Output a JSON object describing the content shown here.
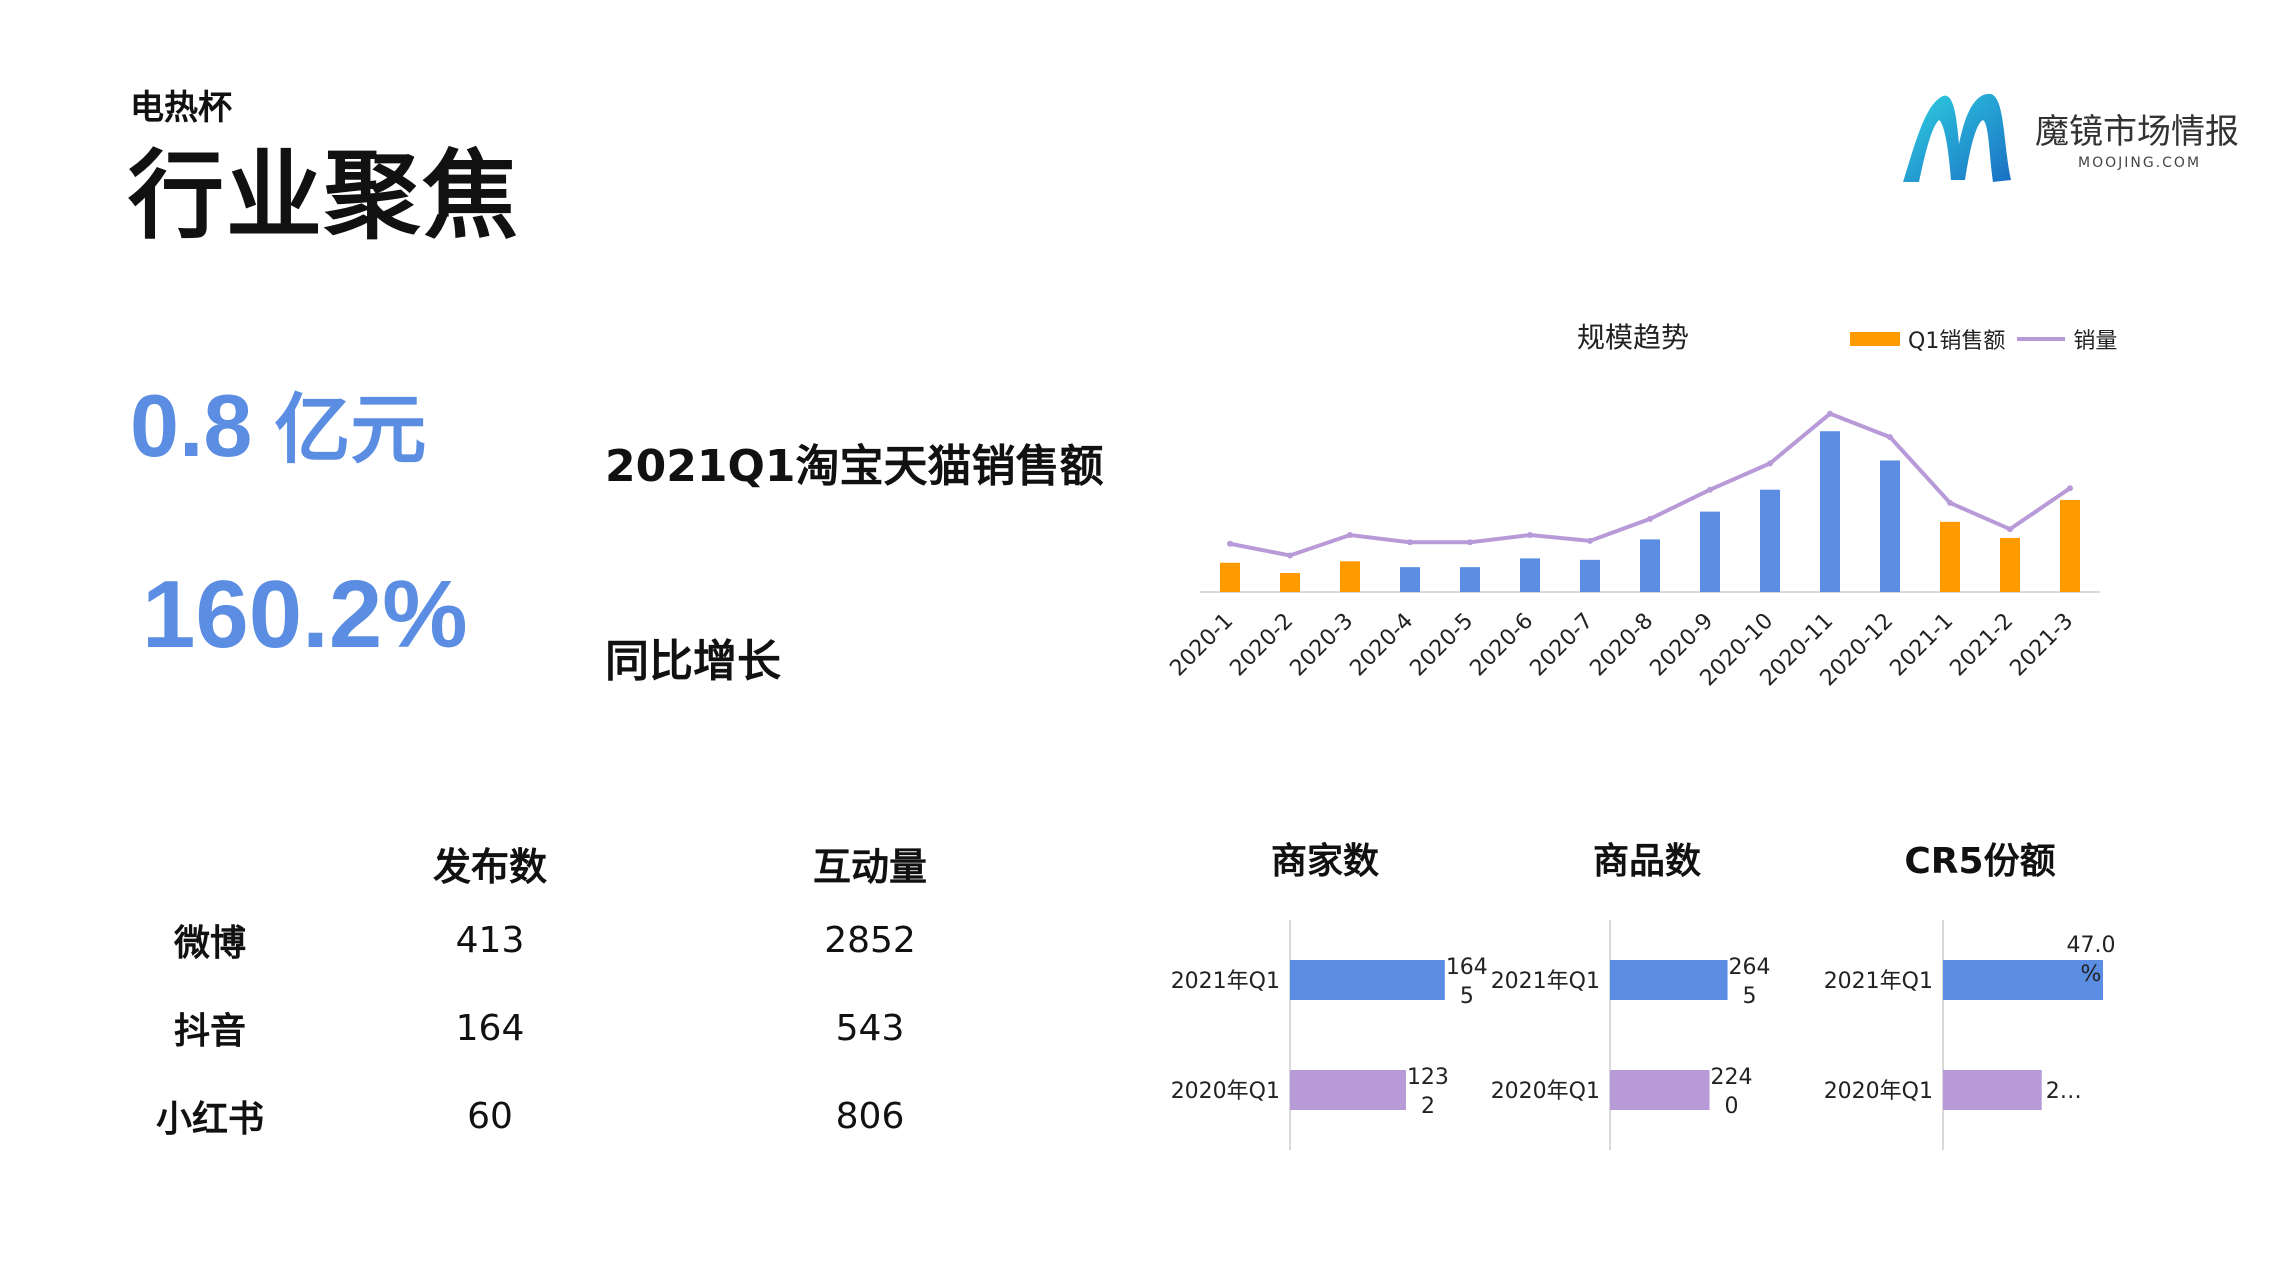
{
  "header": {
    "subtitle": "电热杯",
    "title": "行业聚焦"
  },
  "logo": {
    "name": "魔镜市场情报",
    "domain": "MOOJING.COM"
  },
  "kpis": {
    "sales_value": "0.8",
    "sales_unit": "亿元",
    "sales_label": "2021Q1淘宝天猫销售额",
    "growth_value": "160.2%",
    "growth_label": "同比增长"
  },
  "colors": {
    "kpi_blue": "#5b8ee3",
    "q1_orange": "#ff9a00",
    "bar_blue": "#5b8ee3",
    "line_purple": "#b79ad7"
  },
  "social": {
    "headers": [
      "发布数",
      "互动量"
    ],
    "rows": [
      {
        "platform": "微博",
        "posts": "413",
        "engagement": "2852"
      },
      {
        "platform": "抖音",
        "posts": "164",
        "engagement": "543"
      },
      {
        "platform": "小红书",
        "posts": "60",
        "engagement": "806"
      }
    ]
  },
  "chart_data": [
    {
      "type": "bar",
      "title": "规模趋势",
      "legend_position": "top-right",
      "categories": [
        "2020-1",
        "2020-2",
        "2020-3",
        "2020-4",
        "2020-5",
        "2020-6",
        "2020-7",
        "2020-8",
        "2020-9",
        "2020-10",
        "2020-11",
        "2020-12",
        "2021-1",
        "2021-2",
        "2021-3"
      ],
      "q1_categories": [
        "2020-1",
        "2020-2",
        "2020-3",
        "2021-1",
        "2021-2",
        "2021-3"
      ],
      "series": [
        {
          "name": "Q1销售额",
          "kind": "bar",
          "values": [
            20,
            13,
            21,
            17,
            17,
            23,
            22,
            36,
            55,
            70,
            110,
            90,
            48,
            37,
            63
          ]
        },
        {
          "name": "销量",
          "kind": "line",
          "values": [
            33,
            25,
            39,
            34,
            34,
            39,
            35,
            50,
            70,
            88,
            122,
            106,
            61,
            43,
            71
          ]
        }
      ],
      "ylim": [
        0,
        130
      ],
      "grid": false
    },
    {
      "type": "bar",
      "orientation": "horizontal",
      "title": "商家数",
      "categories": [
        "2021年Q1",
        "2020年Q1"
      ],
      "values": [
        1645,
        1232
      ],
      "labels": [
        "164\n5",
        "123\n2"
      ],
      "xlim": [
        0,
        1700
      ]
    },
    {
      "type": "bar",
      "orientation": "horizontal",
      "title": "商品数",
      "categories": [
        "2021年Q1",
        "2020年Q1"
      ],
      "values": [
        2645,
        2240
      ],
      "labels": [
        "264\n5",
        "224\n0"
      ],
      "xlim": [
        0,
        3600
      ]
    },
    {
      "type": "bar",
      "orientation": "horizontal",
      "title": "CR5份额",
      "categories": [
        "2021年Q1",
        "2020年Q1"
      ],
      "values": [
        47.0,
        29.0
      ],
      "labels": [
        "47.0\n%",
        "2…"
      ],
      "xlim": [
        0,
        47
      ]
    }
  ]
}
